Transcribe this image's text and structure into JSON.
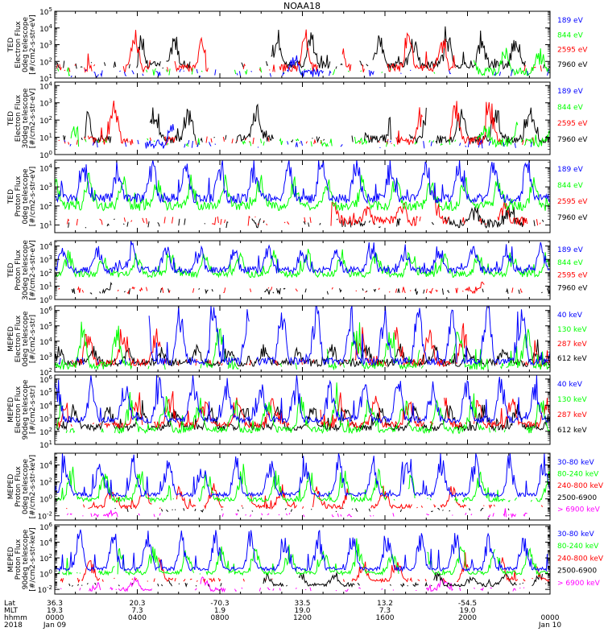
{
  "title": "NOAA18",
  "colors": {
    "black": "#000000",
    "red": "#ff0000",
    "green": "#00ff00",
    "blue": "#0000ff",
    "magenta": "#ff00ff"
  },
  "chart_data": [
    {
      "type": "line",
      "ylabel": [
        "TED",
        "Electron Flux",
        "0deg telescope",
        "[#/cm2-s-str-eV]"
      ],
      "ytick_exponents": [
        1,
        2,
        3,
        4,
        5
      ],
      "ylim_log10": [
        1,
        5
      ],
      "series": [
        {
          "name": "7960 eV",
          "color": "#000000",
          "level": 1.7,
          "amp": 1.6,
          "density": 0.55,
          "seed": 11
        },
        {
          "name": "2595 eV",
          "color": "#ff0000",
          "level": 1.5,
          "amp": 1.8,
          "density": 0.3,
          "seed": 12
        },
        {
          "name": "844 eV",
          "color": "#00ff00",
          "level": 1.3,
          "amp": 1.0,
          "density": 0.15,
          "seed": 13
        },
        {
          "name": "189 eV",
          "color": "#0000ff",
          "level": 1.2,
          "amp": 0.8,
          "density": 0.08,
          "seed": 14
        }
      ]
    },
    {
      "type": "line",
      "ylabel": [
        "TED",
        "Electron Flux",
        "30deg telescope",
        "[#/cm2-s-str-eV]"
      ],
      "ytick_exponents": [
        0,
        1,
        2,
        3,
        4
      ],
      "ylim_log10": [
        0,
        4.2
      ],
      "series": [
        {
          "name": "7960 eV",
          "color": "#000000",
          "level": 0.8,
          "amp": 1.6,
          "density": 0.55,
          "seed": 21
        },
        {
          "name": "2595 eV",
          "color": "#ff0000",
          "level": 0.7,
          "amp": 2.0,
          "density": 0.3,
          "seed": 22
        },
        {
          "name": "844 eV",
          "color": "#00ff00",
          "level": 0.6,
          "amp": 1.0,
          "density": 0.12,
          "seed": 23
        },
        {
          "name": "189 eV",
          "color": "#0000ff",
          "level": 0.5,
          "amp": 1.0,
          "density": 0.06,
          "seed": 24
        }
      ]
    },
    {
      "type": "line",
      "ylabel": [
        "TED",
        "Proton Flux",
        "0deg telescope",
        "[#/cm2-s-str-eV]"
      ],
      "ytick_exponents": [
        1,
        2,
        3,
        4
      ],
      "ylim_log10": [
        0.6,
        4.4
      ],
      "series": [
        {
          "name": "7960 eV",
          "color": "#000000",
          "level": 1.0,
          "amp": 0.8,
          "density": 0.2,
          "seed": 31
        },
        {
          "name": "2595 eV",
          "color": "#ff0000",
          "level": 1.1,
          "amp": 0.8,
          "density": 0.15,
          "seed": 32
        },
        {
          "name": "844 eV",
          "color": "#00ff00",
          "level": 1.9,
          "amp": 1.2,
          "density": 1.0,
          "seed": 33
        },
        {
          "name": "189 eV",
          "color": "#0000ff",
          "level": 2.3,
          "amp": 1.7,
          "density": 1.0,
          "seed": 34
        }
      ]
    },
    {
      "type": "line",
      "ylabel": [
        "TED",
        "Proton Flux",
        "30deg telescope",
        "[#/cm2-s-str-eV]"
      ],
      "ytick_exponents": [
        0,
        1,
        2,
        3,
        4
      ],
      "ylim_log10": [
        0,
        4.4
      ],
      "series": [
        {
          "name": "7960 eV",
          "color": "#000000",
          "level": 0.5,
          "amp": 0.4,
          "density": 0.05,
          "seed": 41
        },
        {
          "name": "2595 eV",
          "color": "#ff0000",
          "level": 0.6,
          "amp": 0.5,
          "density": 0.05,
          "seed": 42
        },
        {
          "name": "844 eV",
          "color": "#00ff00",
          "level": 1.8,
          "amp": 1.4,
          "density": 1.0,
          "seed": 43
        },
        {
          "name": "189 eV",
          "color": "#0000ff",
          "level": 2.1,
          "amp": 1.6,
          "density": 1.0,
          "seed": 44
        }
      ]
    },
    {
      "type": "line",
      "ylabel": [
        "MEPED",
        "Electron Flux",
        "0deg telescope",
        "[#/cm2-s-str]"
      ],
      "ytick_exponents": [
        2,
        3,
        4,
        5,
        6
      ],
      "ylim_log10": [
        2,
        6.3
      ],
      "series": [
        {
          "name": "612 keV",
          "color": "#000000",
          "level": 2.5,
          "amp": 0.8,
          "density": 1.0,
          "seed": 51
        },
        {
          "name": "287 keV",
          "color": "#ff0000",
          "level": 2.5,
          "amp": 1.8,
          "density": 0.6,
          "seed": 52
        },
        {
          "name": "130 keV",
          "color": "#00ff00",
          "level": 2.3,
          "amp": 2.2,
          "density": 0.6,
          "seed": 53
        },
        {
          "name": "40 keV",
          "color": "#0000ff",
          "level": 2.6,
          "amp": 3.2,
          "density": 0.8,
          "seed": 54
        }
      ]
    },
    {
      "type": "line",
      "ylabel": [
        "MEPED",
        "Electron Flux",
        "90deg telescope",
        "[#/cm2-s-str]"
      ],
      "ytick_exponents": [
        1,
        2,
        3,
        4,
        5,
        6
      ],
      "ylim_log10": [
        1,
        6.3
      ],
      "series": [
        {
          "name": "612 keV",
          "color": "#000000",
          "level": 2.2,
          "amp": 1.4,
          "density": 1.0,
          "seed": 61
        },
        {
          "name": "287 keV",
          "color": "#ff0000",
          "level": 2.4,
          "amp": 1.8,
          "density": 0.9,
          "seed": 62
        },
        {
          "name": "130 keV",
          "color": "#00ff00",
          "level": 2.0,
          "amp": 2.2,
          "density": 0.9,
          "seed": 63
        },
        {
          "name": "40 keV",
          "color": "#0000ff",
          "level": 2.8,
          "amp": 2.6,
          "density": 1.0,
          "seed": 64
        }
      ]
    },
    {
      "type": "line",
      "ylabel": [
        "MEPED",
        "Proton Flux",
        "0deg telescope",
        "[#/cm2-s-str-keV]"
      ],
      "ytick_exponents": [
        -2,
        0,
        2,
        4
      ],
      "ylim_log10": [
        -2.5,
        5.4
      ],
      "series": [
        {
          "name": "> 6900 keV",
          "color": "#ff00ff",
          "level": -2.0,
          "amp": 1.4,
          "density": 0.1,
          "seed": 71
        },
        {
          "name": "2500-6900",
          "color": "#000000",
          "level": -1.4,
          "amp": 1.2,
          "density": 0.15,
          "seed": 72
        },
        {
          "name": "240-800 keV",
          "color": "#ff0000",
          "level": -1.0,
          "amp": 2.0,
          "density": 0.5,
          "seed": 73
        },
        {
          "name": "80-240 keV",
          "color": "#00ff00",
          "level": -0.2,
          "amp": 2.8,
          "density": 0.7,
          "seed": 74
        },
        {
          "name": "30-80 keV",
          "color": "#0000ff",
          "level": 0.4,
          "amp": 3.8,
          "density": 1.0,
          "seed": 75
        }
      ]
    },
    {
      "type": "line",
      "ylabel": [
        "MEPED",
        "Proton Flux",
        "90deg telescope",
        "[#/cm2-s-str-keV]"
      ],
      "ytick_exponents": [
        -2,
        0,
        2,
        4,
        6
      ],
      "ylim_log10": [
        -2.6,
        6.2
      ],
      "series": [
        {
          "name": "> 6900 keV",
          "color": "#ff00ff",
          "level": -2.1,
          "amp": 1.2,
          "density": 0.1,
          "seed": 81
        },
        {
          "name": "2500-6900",
          "color": "#000000",
          "level": -1.5,
          "amp": 1.2,
          "density": 0.2,
          "seed": 82
        },
        {
          "name": "240-800 keV",
          "color": "#ff0000",
          "level": -0.9,
          "amp": 2.2,
          "density": 0.5,
          "seed": 83
        },
        {
          "name": "80-240 keV",
          "color": "#00ff00",
          "level": 0.0,
          "amp": 2.8,
          "density": 0.8,
          "seed": 84
        },
        {
          "name": "30-80 keV",
          "color": "#0000ff",
          "level": 0.5,
          "amp": 4.0,
          "density": 1.0,
          "seed": 85
        }
      ]
    }
  ],
  "x_axis": {
    "row_labels": [
      "Lat",
      "MLT",
      "hhmm",
      "2018"
    ],
    "ticks": [
      {
        "lat": "36.3",
        "mlt": "19.3",
        "hhmm": "0000",
        "date": "Jan 09"
      },
      {
        "lat": "20.3",
        "mlt": "7.3",
        "hhmm": "0400",
        "date": ""
      },
      {
        "lat": "-70.3",
        "mlt": "1.9",
        "hhmm": "0800",
        "date": ""
      },
      {
        "lat": "33.5",
        "mlt": "19.0",
        "hhmm": "1200",
        "date": ""
      },
      {
        "lat": "13.2",
        "mlt": "7.3",
        "hhmm": "1600",
        "date": ""
      },
      {
        "lat": "-54.5",
        "mlt": "19.0",
        "hhmm": "2000",
        "date": ""
      },
      {
        "lat": "",
        "mlt": "",
        "hhmm": "0000",
        "date": "Jan 10"
      }
    ]
  }
}
